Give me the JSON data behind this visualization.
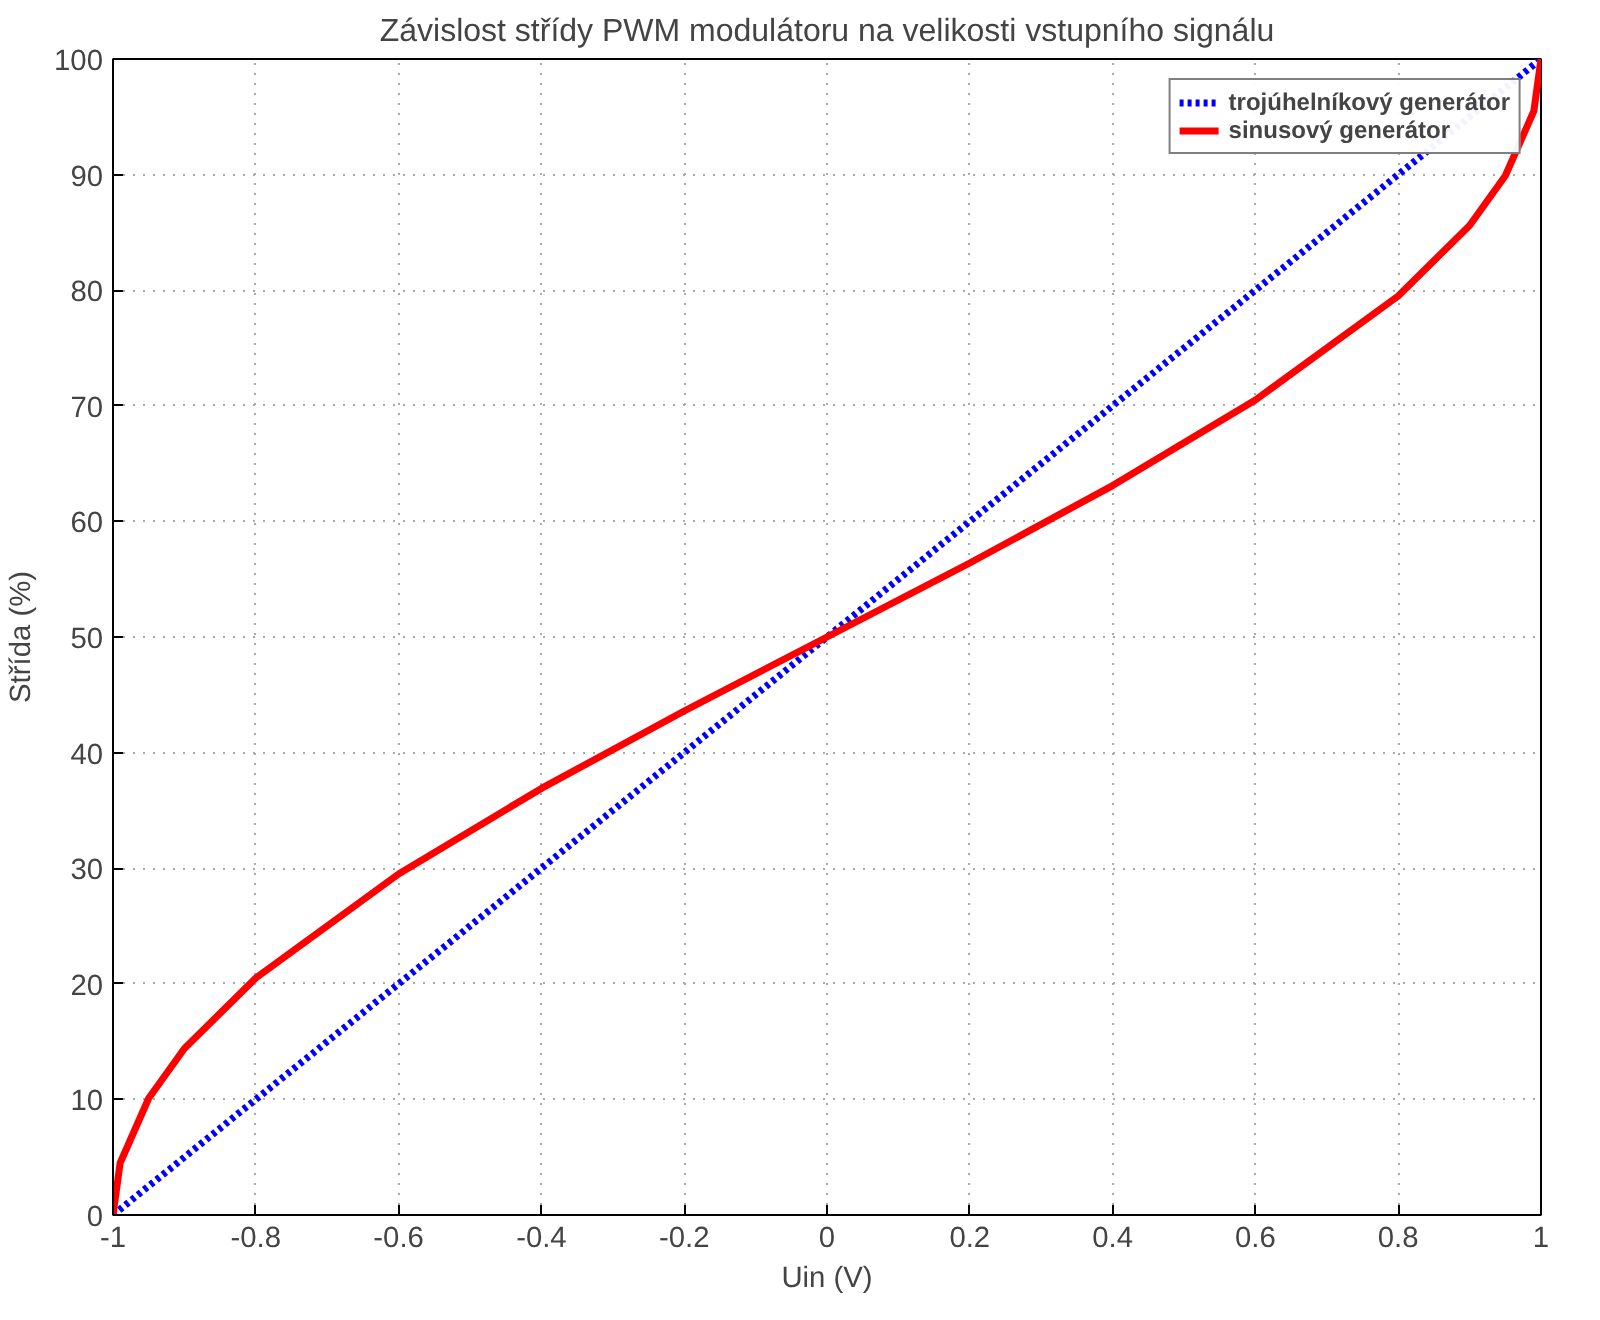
{
  "chart_data": {
    "type": "line",
    "title": "Závislost střídy PWM modulátoru na velikosti vstupního signálu",
    "xlabel": "Uin (V)",
    "ylabel": "Střída (%)",
    "xlim": [
      -1,
      1
    ],
    "ylim": [
      0,
      100
    ],
    "xticks": [
      -1,
      -0.8,
      -0.6,
      -0.4,
      -0.2,
      0,
      0.2,
      0.4,
      0.6,
      0.8,
      1
    ],
    "yticks": [
      0,
      10,
      20,
      30,
      40,
      50,
      60,
      70,
      80,
      90,
      100
    ],
    "grid": true,
    "legend": "top right",
    "series": [
      {
        "name": "trojúhelníkový generátor",
        "color": "#0000ff",
        "line_style": "dotted",
        "x": [
          -1,
          1
        ],
        "values": [
          0,
          100
        ]
      },
      {
        "name": "sinusový generátor",
        "color": "#ff0000",
        "line_style": "solid",
        "x": [
          -1,
          -0.99,
          -0.95,
          -0.9,
          -0.8,
          -0.6,
          -0.4,
          -0.2,
          0,
          0.2,
          0.4,
          0.6,
          0.8,
          0.9,
          0.95,
          0.99,
          1
        ],
        "values": [
          0,
          4.5,
          10.1,
          14.4,
          20.5,
          29.5,
          36.9,
          43.6,
          50,
          56.4,
          63.1,
          70.5,
          79.5,
          85.6,
          89.9,
          95.5,
          100
        ]
      }
    ]
  }
}
